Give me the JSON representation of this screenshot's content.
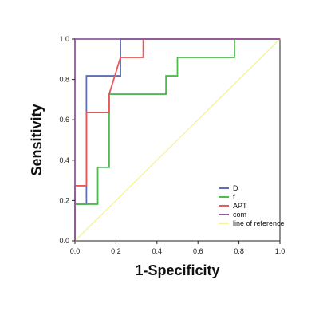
{
  "chart_data": {
    "type": "line",
    "title": "",
    "xlabel": "1-Specificity",
    "ylabel": "Sensitivity",
    "xlim": [
      0.0,
      1.0
    ],
    "ylim": [
      0.0,
      1.0
    ],
    "x_ticks": [
      "0.0",
      "0.2",
      "0.4",
      "0.6",
      "0.8",
      "1.0"
    ],
    "y_ticks": [
      "0.0",
      "0.2",
      "0.4",
      "0.6",
      "0.8",
      "1.0"
    ],
    "grid": false,
    "legend_position": "bottom-right",
    "series": [
      {
        "name": "D",
        "color": "#5b6fb5",
        "x": [
          0.0,
          0.0,
          0.056,
          0.056,
          0.222,
          0.222,
          1.0
        ],
        "y": [
          0.0,
          0.182,
          0.182,
          0.818,
          0.818,
          1.0,
          1.0
        ]
      },
      {
        "name": "f",
        "color": "#4dbb4d",
        "x": [
          0.0,
          0.0,
          0.111,
          0.111,
          0.167,
          0.167,
          0.444,
          0.444,
          0.5,
          0.5,
          0.778,
          0.778,
          1.0
        ],
        "y": [
          0.0,
          0.182,
          0.182,
          0.364,
          0.364,
          0.727,
          0.727,
          0.818,
          0.818,
          0.909,
          0.909,
          1.0,
          1.0
        ]
      },
      {
        "name": "APT",
        "color": "#e8585a",
        "x": [
          0.0,
          0.0,
          0.056,
          0.056,
          0.167,
          0.167,
          0.222,
          0.222,
          0.333,
          0.333,
          1.0
        ],
        "y": [
          0.0,
          0.273,
          0.273,
          0.636,
          0.636,
          0.727,
          0.909,
          0.909,
          0.909,
          1.0,
          1.0
        ]
      },
      {
        "name": "com",
        "color": "#8e5a9e",
        "x": [
          0.0,
          0.0,
          1.0
        ],
        "y": [
          0.0,
          1.0,
          1.0
        ]
      },
      {
        "name": "line of reference",
        "color": "#f3f39a",
        "x": [
          0.0,
          1.0
        ],
        "y": [
          0.0,
          1.0
        ]
      }
    ]
  }
}
